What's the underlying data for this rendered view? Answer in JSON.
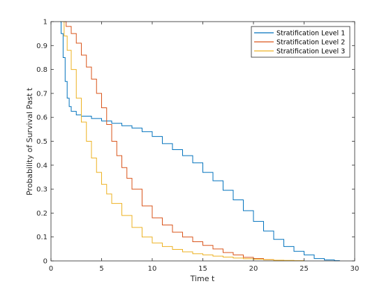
{
  "chart_data": {
    "type": "line",
    "xlabel": "Time t",
    "ylabel": "Probability of Survival Past t",
    "xlim": [
      0,
      30
    ],
    "ylim": [
      0,
      1
    ],
    "xticks": [
      "0",
      "5",
      "10",
      "15",
      "20",
      "25",
      "30"
    ],
    "yticks": [
      "0",
      "0.1",
      "0.2",
      "0.3",
      "0.4",
      "0.5",
      "0.6",
      "0.7",
      "0.8",
      "0.9",
      "1"
    ],
    "grid": false,
    "legend_position": "top-right",
    "series": [
      {
        "name": "Stratification Level 1",
        "color": "#0072BD",
        "x": [
          0.9,
          1.0,
          1.2,
          1.4,
          1.6,
          1.8,
          2.0,
          2.5,
          3.0,
          4.0,
          5.0,
          6.0,
          7.0,
          8.0,
          9.0,
          10.0,
          11.0,
          12.0,
          13.0,
          14.0,
          15.0,
          16.0,
          17.0,
          18.0,
          19.0,
          20.0,
          21.0,
          22.0,
          23.0,
          24.0,
          25.0,
          26.0,
          27.0,
          28.0,
          28.5
        ],
        "y": [
          1.0,
          0.95,
          0.85,
          0.75,
          0.68,
          0.645,
          0.625,
          0.61,
          0.605,
          0.595,
          0.585,
          0.575,
          0.565,
          0.555,
          0.54,
          0.52,
          0.49,
          0.465,
          0.44,
          0.41,
          0.37,
          0.335,
          0.295,
          0.255,
          0.21,
          0.165,
          0.125,
          0.09,
          0.06,
          0.04,
          0.025,
          0.01,
          0.004,
          0.001,
          0.0
        ]
      },
      {
        "name": "Stratification Level 2",
        "color": "#D95319",
        "x": [
          1.0,
          1.5,
          2.0,
          2.5,
          3.0,
          3.5,
          4.0,
          4.5,
          5.0,
          5.5,
          6.0,
          6.5,
          7.0,
          7.5,
          8.0,
          9.0,
          10.0,
          11.0,
          12.0,
          13.0,
          14.0,
          15.0,
          16.0,
          17.0,
          18.0,
          19.0,
          20.0,
          21.0,
          22.0,
          23.0
        ],
        "y": [
          1.0,
          0.98,
          0.95,
          0.91,
          0.86,
          0.81,
          0.76,
          0.7,
          0.64,
          0.57,
          0.5,
          0.44,
          0.39,
          0.345,
          0.3,
          0.23,
          0.18,
          0.15,
          0.12,
          0.1,
          0.08,
          0.065,
          0.05,
          0.035,
          0.025,
          0.015,
          0.01,
          0.005,
          0.002,
          0.0
        ]
      },
      {
        "name": "Stratification Level 3",
        "color": "#EDB120",
        "x": [
          1.0,
          1.3,
          1.6,
          2.0,
          2.5,
          3.0,
          3.5,
          4.0,
          4.5,
          5.0,
          5.5,
          6.0,
          7.0,
          8.0,
          9.0,
          10.0,
          11.0,
          12.0,
          13.0,
          14.0,
          15.0,
          16.0,
          17.0,
          18.0,
          19.0,
          20.0,
          21.0,
          22.0,
          23.0,
          24.0,
          25.0
        ],
        "y": [
          1.0,
          0.94,
          0.88,
          0.8,
          0.68,
          0.58,
          0.5,
          0.43,
          0.37,
          0.32,
          0.28,
          0.24,
          0.19,
          0.14,
          0.1,
          0.075,
          0.06,
          0.048,
          0.038,
          0.03,
          0.025,
          0.02,
          0.016,
          0.012,
          0.009,
          0.007,
          0.005,
          0.003,
          0.002,
          0.001,
          0.0
        ]
      }
    ]
  }
}
